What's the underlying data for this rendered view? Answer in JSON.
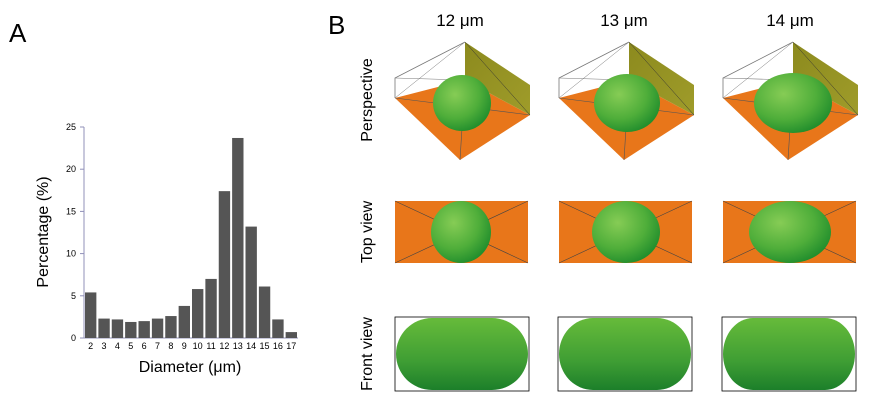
{
  "panel_labels": {
    "a": "A",
    "b": "B"
  },
  "chart_data": {
    "type": "bar",
    "title": "",
    "xlabel": "Diameter (μm)",
    "ylabel": "Percentage (%)",
    "ylim": [
      0,
      25
    ],
    "yticks": [
      0,
      5,
      10,
      15,
      20,
      25
    ],
    "categories": [
      "2",
      "3",
      "4",
      "5",
      "6",
      "7",
      "8",
      "9",
      "10",
      "11",
      "12",
      "13",
      "14",
      "15",
      "16",
      "17"
    ],
    "values": [
      5.4,
      2.3,
      2.2,
      1.9,
      2.0,
      2.3,
      2.6,
      3.8,
      5.8,
      7.0,
      17.4,
      23.7,
      13.2,
      6.1,
      2.2,
      0.7
    ],
    "bar_color": "#555555",
    "axis_color": "#9090b8",
    "grid": false
  },
  "panel_b": {
    "columns": [
      "12 μm",
      "13 μm",
      "14 μm"
    ],
    "rows": [
      "Perspective",
      "Top view",
      "Front view"
    ],
    "colors": {
      "substrate": "#e8761a",
      "wall": "#8a8a1c",
      "cell_light": "#7ec850",
      "cell_dark": "#1f8c2c"
    }
  }
}
